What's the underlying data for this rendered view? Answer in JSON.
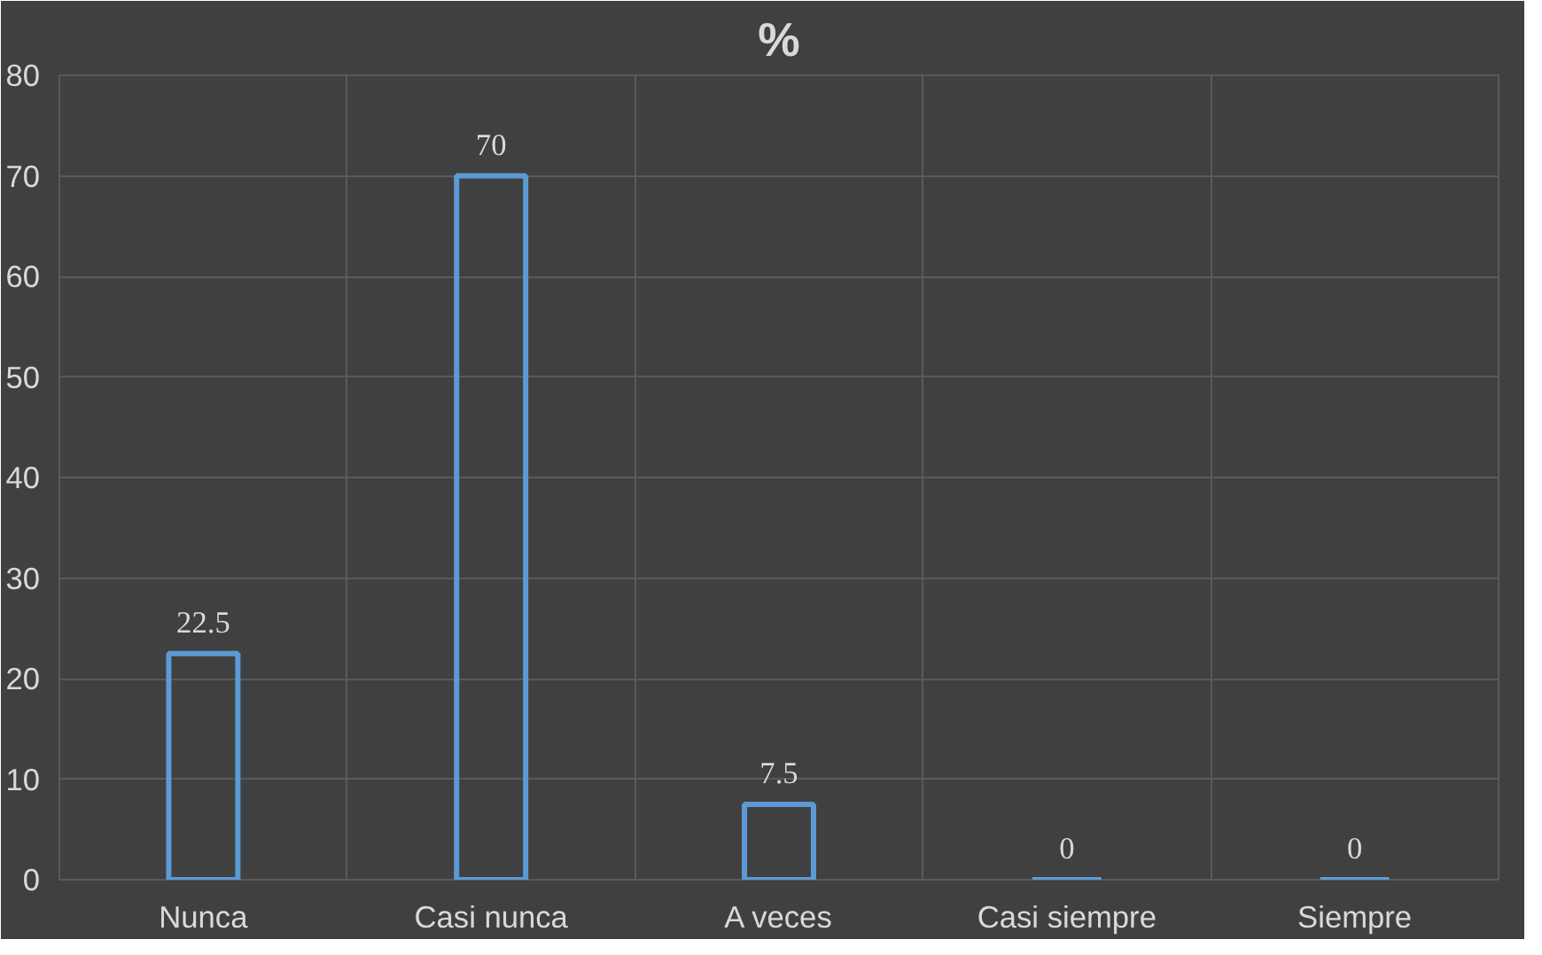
{
  "chart_data": {
    "type": "bar",
    "title": "%",
    "categories": [
      "Nunca",
      "Casi nunca",
      "A veces",
      "Casi siempre",
      "Siempre"
    ],
    "values": [
      22.5,
      70,
      7.5,
      0,
      0
    ],
    "color": "#5b9bd5",
    "ylim": [
      0,
      80
    ],
    "yticks": [
      0,
      10,
      20,
      30,
      40,
      50,
      60,
      70,
      80
    ],
    "grid": true,
    "data_labels": true
  }
}
